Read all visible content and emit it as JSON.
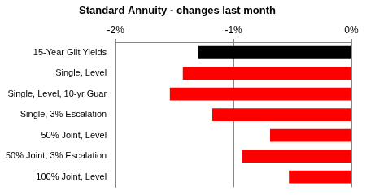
{
  "chart_data": {
    "type": "bar",
    "orientation": "horizontal",
    "title": "Standard Annuity - changes last month",
    "categories": [
      "15-Year Gilt Yields",
      "Single, Level",
      "Single, Level, 10-yr Guar",
      "Single, 3% Escalation",
      "50% Joint, Level",
      "50% Joint, 3% Escalation",
      "100% Joint, Level"
    ],
    "values": [
      -1.3,
      -1.43,
      -1.54,
      -1.18,
      -0.69,
      -0.93,
      -0.53
    ],
    "colors": [
      "#000000",
      "#ff0000",
      "#ff0000",
      "#ff0000",
      "#ff0000",
      "#ff0000",
      "#ff0000"
    ],
    "xlim": [
      -2,
      0
    ],
    "xticks": [
      {
        "value": -2,
        "label": "-2%"
      },
      {
        "value": -1,
        "label": "-1%"
      },
      {
        "value": 0,
        "label": "0%"
      }
    ],
    "grid": true
  }
}
